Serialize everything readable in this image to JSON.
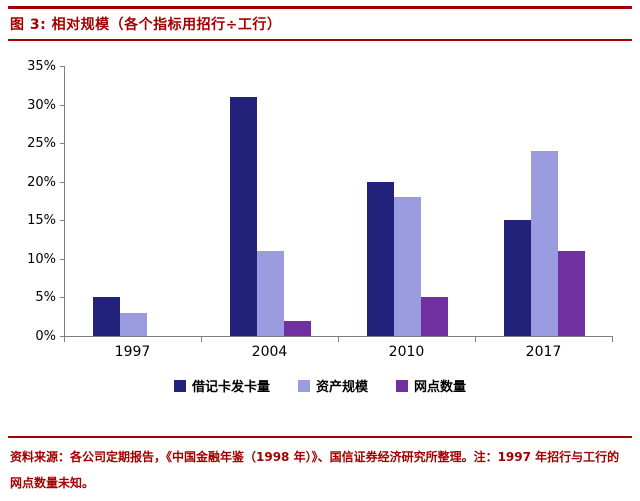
{
  "colors": {
    "accent_red": "#A30000",
    "axis_gray": "#808080",
    "text_black": "#000000"
  },
  "header": {
    "title": "图 3: 相对规模（各个指标用招行÷工行）"
  },
  "chart_data": {
    "type": "bar",
    "title": "相对规模（各个指标用招行÷工行）",
    "categories": [
      "1997",
      "2004",
      "2010",
      "2017"
    ],
    "series": [
      {
        "name": "借记卡发卡量",
        "color": "#22227A",
        "values": [
          5,
          31,
          20,
          15
        ]
      },
      {
        "name": "资产规模",
        "color": "#9B9BDF",
        "values": [
          3,
          11,
          18,
          24
        ]
      },
      {
        "name": "网点数量",
        "color": "#7030A0",
        "values": [
          0,
          2,
          5,
          11
        ]
      }
    ],
    "unit": "%",
    "ylim": [
      0,
      35
    ],
    "ytick_step": 5,
    "ytick_labels": [
      "0%",
      "5%",
      "10%",
      "15%",
      "20%",
      "25%",
      "30%",
      "35%"
    ],
    "grid": false,
    "legend_position": "bottom"
  },
  "footer": {
    "text": "资料来源：各公司定期报告，《中国金融年鉴（1998 年）》、国信证券经济研究所整理。注：1997 年招行与工行的网点数量未知。"
  }
}
